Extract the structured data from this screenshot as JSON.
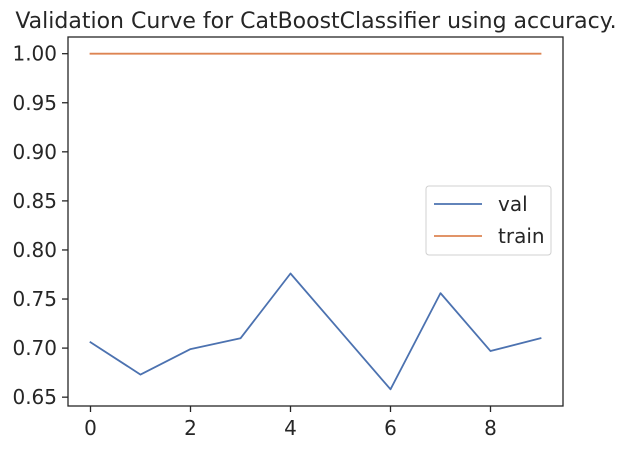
{
  "chart_data": {
    "type": "line",
    "title": "Validation Curve for CatBoostClassifier using accuracy.",
    "xlabel": "",
    "ylabel": "",
    "x": [
      0,
      1,
      2,
      3,
      4,
      5,
      6,
      7,
      8,
      9
    ],
    "xlim": [
      -0.45,
      9.45
    ],
    "ylim": [
      0.641,
      1.017
    ],
    "xticks": [
      0,
      2,
      4,
      6,
      8
    ],
    "yticks": [
      0.65,
      0.7,
      0.75,
      0.8,
      0.85,
      0.9,
      0.95,
      1.0
    ],
    "ytick_labels": [
      "0.65",
      "0.70",
      "0.75",
      "0.80",
      "0.85",
      "0.90",
      "0.95",
      "1.00"
    ],
    "grid": false,
    "legend_position": "center-right",
    "series": [
      {
        "name": "val",
        "color": "#4c72b0",
        "values": [
          0.706,
          0.673,
          0.699,
          0.71,
          0.776,
          0.717,
          0.658,
          0.756,
          0.697,
          0.71
        ]
      },
      {
        "name": "train",
        "color": "#dd8452",
        "values": [
          1.0,
          1.0,
          1.0,
          1.0,
          1.0,
          1.0,
          1.0,
          1.0,
          1.0,
          1.0
        ]
      }
    ]
  }
}
